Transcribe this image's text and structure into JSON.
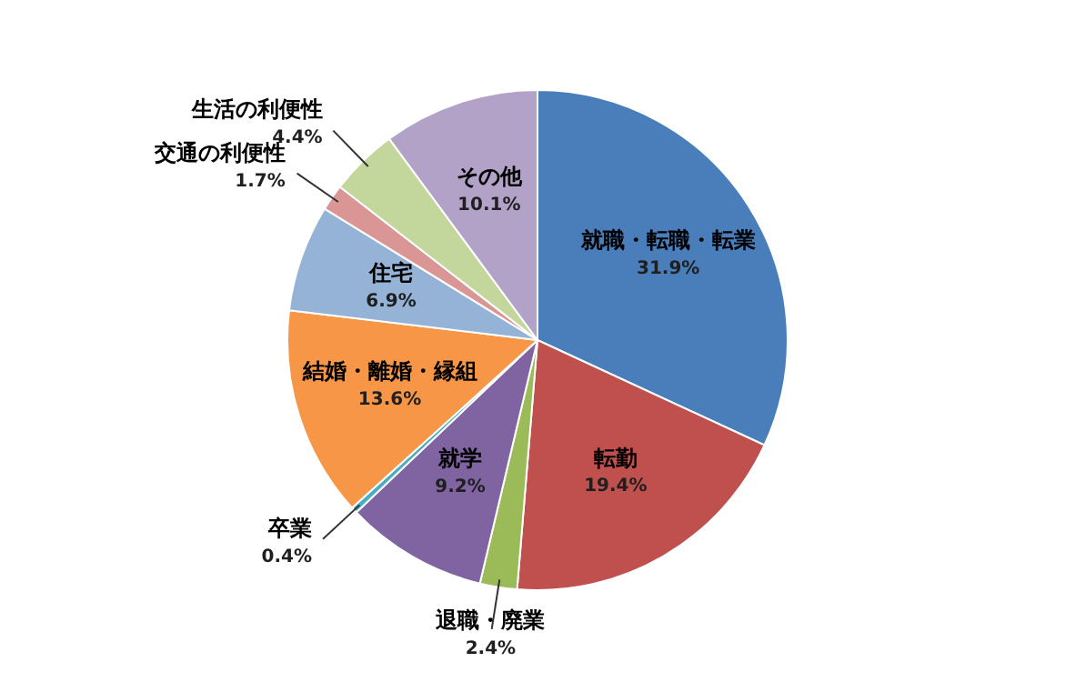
{
  "chart_data": {
    "type": "pie",
    "categories": [
      "就職・転職・転業",
      "転勤",
      "退職・廃業",
      "就学",
      "卒業",
      "結婚・離婚・縁組",
      "住宅",
      "交通の利便性",
      "生活の利便性",
      "その他"
    ],
    "values": [
      31.9,
      19.4,
      2.4,
      9.2,
      0.4,
      13.6,
      6.9,
      1.7,
      4.4,
      10.1
    ],
    "value_labels": [
      "31.9%",
      "19.4%",
      "2.4%",
      "9.2%",
      "0.4%",
      "13.6%",
      "6.9%",
      "1.7%",
      "4.4%",
      "10.1%"
    ],
    "colors": [
      "#4a7ebb",
      "#c0504d",
      "#9bbb59",
      "#8064a2",
      "#4bacc6",
      "#f79646",
      "#95b3d7",
      "#d99694",
      "#c3d69b",
      "#b3a2c7"
    ],
    "legend": false
  }
}
